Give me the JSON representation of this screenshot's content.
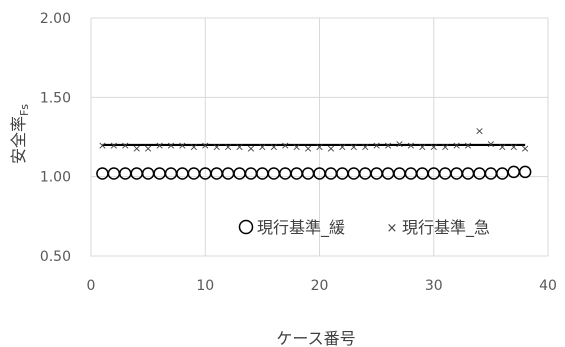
{
  "chart_data": {
    "type": "scatter",
    "title": "",
    "xlabel": "ケース番号",
    "ylabel": "安全率",
    "ylabel_sub": "Fs",
    "xlim": [
      0,
      40
    ],
    "ylim": [
      0.5,
      2.0
    ],
    "x_ticks": [
      "0",
      "10",
      "20",
      "30",
      "40"
    ],
    "y_ticks": [
      "0.50",
      "1.00",
      "1.50",
      "2.00"
    ],
    "grid": true,
    "legend_position": "bottom-right",
    "reference_line": {
      "y": 1.2,
      "x_range": [
        1,
        38
      ],
      "color": "#000000"
    },
    "series": [
      {
        "name": "現行基準_緩",
        "marker": "circle",
        "color": "#000000",
        "x": [
          1,
          2,
          3,
          4,
          5,
          6,
          7,
          8,
          9,
          10,
          11,
          12,
          13,
          14,
          15,
          16,
          17,
          18,
          19,
          20,
          21,
          22,
          23,
          24,
          25,
          26,
          27,
          28,
          29,
          30,
          31,
          32,
          33,
          34,
          35,
          36,
          37,
          38
        ],
        "y": [
          1.02,
          1.02,
          1.02,
          1.02,
          1.02,
          1.02,
          1.02,
          1.02,
          1.02,
          1.02,
          1.02,
          1.02,
          1.02,
          1.02,
          1.02,
          1.02,
          1.02,
          1.02,
          1.02,
          1.02,
          1.02,
          1.02,
          1.02,
          1.02,
          1.02,
          1.02,
          1.02,
          1.02,
          1.02,
          1.02,
          1.02,
          1.02,
          1.02,
          1.02,
          1.02,
          1.02,
          1.03,
          1.03
        ]
      },
      {
        "name": "現行基準_急",
        "marker": "x",
        "color": "#404040",
        "x": [
          1,
          2,
          3,
          4,
          5,
          6,
          7,
          8,
          9,
          10,
          11,
          12,
          13,
          14,
          15,
          16,
          17,
          18,
          19,
          20,
          21,
          22,
          23,
          24,
          25,
          26,
          27,
          28,
          29,
          30,
          31,
          32,
          33,
          34,
          35,
          36,
          37,
          38
        ],
        "y": [
          1.2,
          1.2,
          1.2,
          1.18,
          1.18,
          1.2,
          1.2,
          1.2,
          1.19,
          1.2,
          1.19,
          1.19,
          1.19,
          1.18,
          1.19,
          1.19,
          1.2,
          1.19,
          1.18,
          1.19,
          1.18,
          1.19,
          1.19,
          1.19,
          1.2,
          1.2,
          1.21,
          1.2,
          1.19,
          1.19,
          1.19,
          1.2,
          1.2,
          1.29,
          1.21,
          1.19,
          1.19,
          1.18
        ]
      }
    ]
  }
}
